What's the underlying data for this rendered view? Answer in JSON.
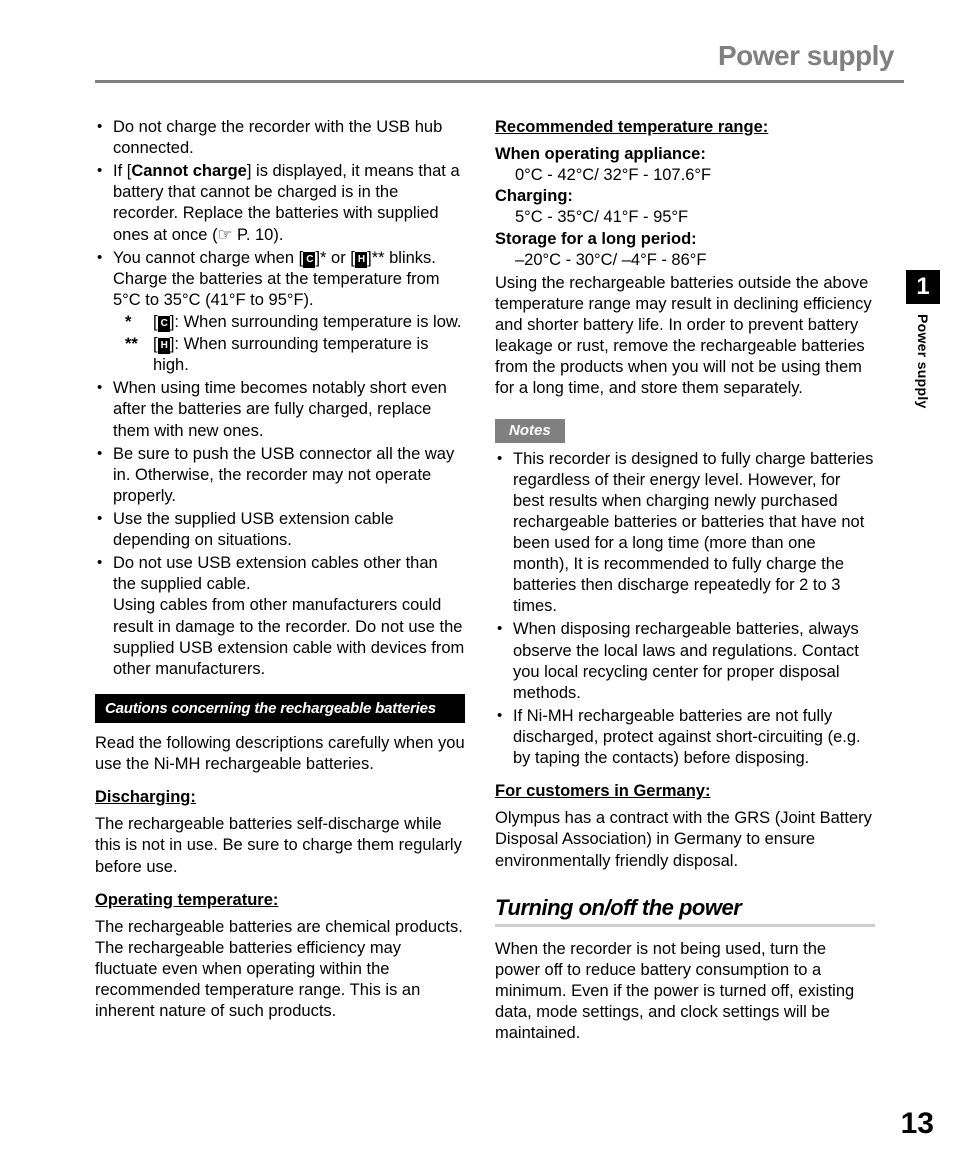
{
  "page": {
    "title": "Power supply",
    "chapter_number": "1",
    "side_label": "Power supply",
    "page_number": "13"
  },
  "left": {
    "bullets": [
      "Do not charge the recorder with the USB hub connected.",
      "If [{B}Cannot charge{/B}] is displayed, it means that a battery that cannot be charged is in the recorder. Replace the batteries with supplied ones at once (☞ P. 10).",
      "You cannot charge when [{IC}]* or [{IH}]** blinks. Charge the batteries at the temperature from 5°C to 35°C (41°F to 95°F).",
      "When using time becomes notably short even after the batteries are fully charged, replace them with new ones.",
      "Be sure to push the USB connector all the way in. Otherwise, the recorder may not operate properly.",
      "Use the supplied USB extension cable depending on situations.",
      "Do not use USB extension cables other than the supplied cable.\nUsing cables from other manufacturers could result in damage to the recorder. Do not use the supplied USB extension cable with devices from other manufacturers."
    ],
    "sub_star1": "[{IC}]: When surrounding temperature is low.",
    "sub_star2": "[{IH}]: When surrounding temperature is high.",
    "cautions_bar": "Cautions concerning the rechargeable batteries",
    "cautions_intro": "Read the following descriptions carefully when you use the Ni-MH rechargeable batteries.",
    "discharging_h": "Discharging:",
    "discharging_p": "The rechargeable batteries self-discharge while this is not in use. Be sure to charge them regularly before use.",
    "optemp_h": "Operating temperature:",
    "optemp_p": "The rechargeable batteries are chemical products. The rechargeable batteries efficiency may fluctuate even when operating within the recommended temperature range. This is an inherent nature of such products."
  },
  "right": {
    "rec_h": "Recommended temperature range:",
    "op_h": "When operating appliance:",
    "op_v": "0°C - 42°C/ 32°F - 107.6°F",
    "ch_h": "Charging:",
    "ch_v": "5°C - 35°C/ 41°F - 95°F",
    "st_h": "Storage for a long period:",
    "st_v": "–20°C - 30°C/ –4°F - 86°F",
    "rec_p": "Using the rechargeable batteries outside the above temperature range may result in declining efficiency and shorter battery life. In order to prevent battery leakage or rust, remove the rechargeable batteries from the products when you will not be using them for a long time, and store them separately.",
    "notes_label": "Notes",
    "notes": [
      "This recorder is designed to fully charge batteries regardless of their energy level. However, for best results when charging newly purchased rechargeable batteries or batteries that have not been used for a long time (more than one month), It is recommended to fully charge the batteries then discharge repeatedly for 2 to 3 times.",
      "When disposing rechargeable batteries, always observe the local laws and regulations. Contact you local recycling center for proper disposal methods.",
      "If Ni-MH rechargeable batteries are not fully discharged, protect against short-circuiting (e.g. by taping the contacts) before disposing."
    ],
    "de_h": "For customers in Germany:",
    "de_p": "Olympus has a contract with the GRS (Joint Battery Disposal Association) in Germany to ensure environmentally friendly disposal.",
    "turn_h": "Turning on/off the power",
    "turn_p": "When the recorder is not being used, turn the power off to reduce battery consumption to a minimum. Even if the power is turned off, existing data, mode settings, and clock settings will be maintained."
  }
}
